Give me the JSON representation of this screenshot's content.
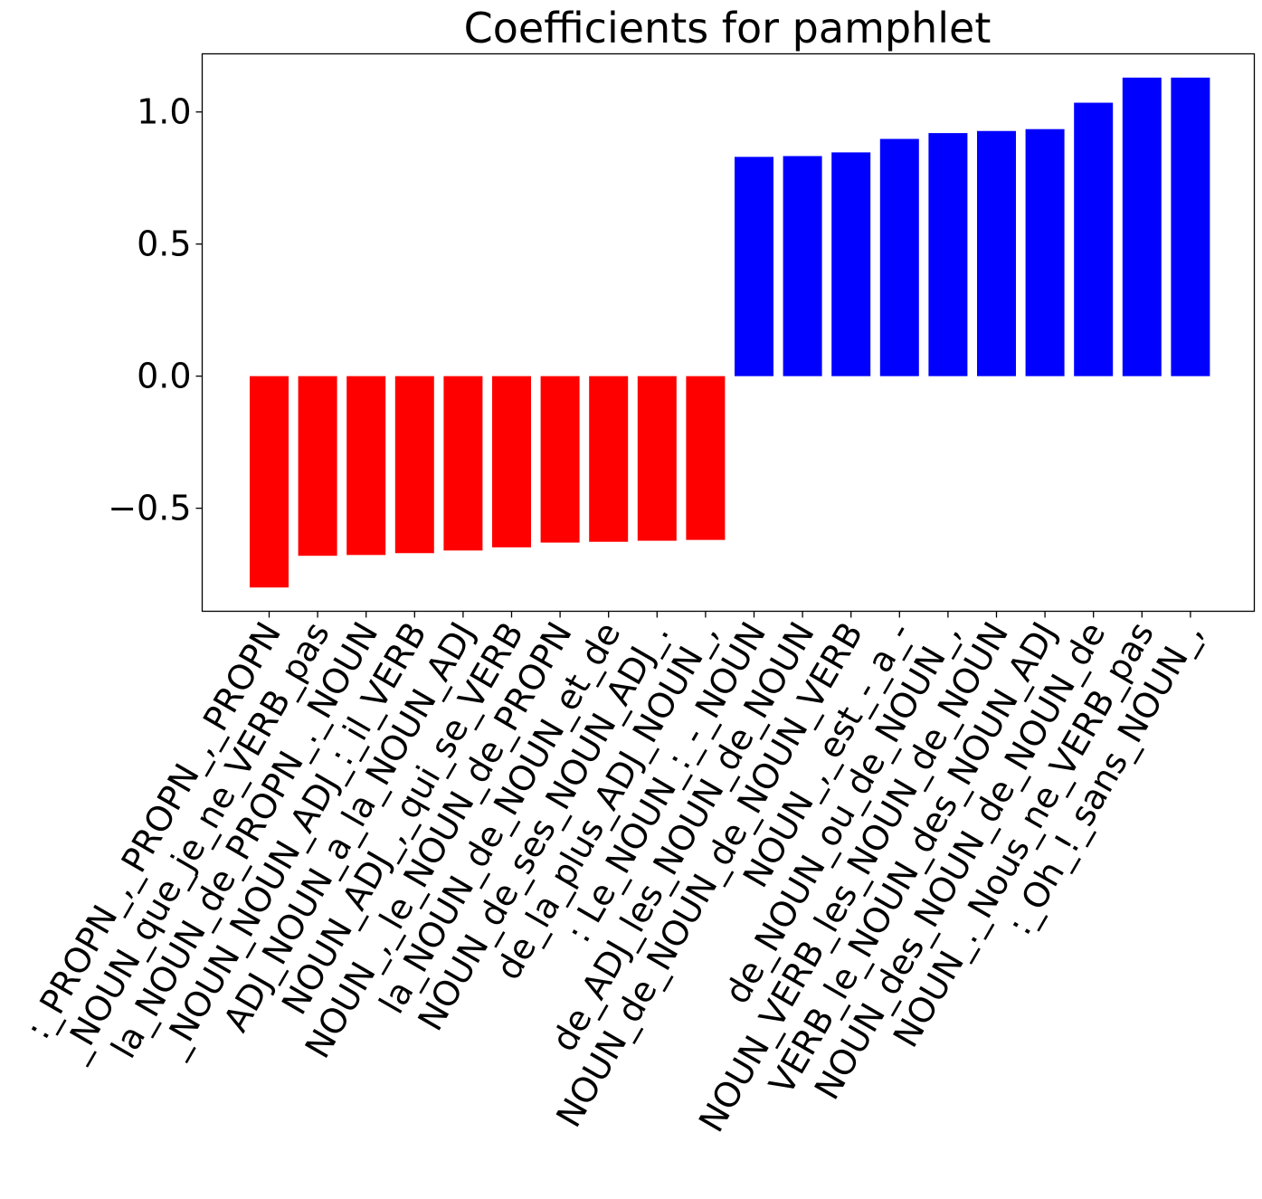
{
  "chart_data": {
    "type": "bar",
    "title": "Coefficients for pamphlet",
    "xlabel": "",
    "ylabel": "",
    "ylim": [
      -0.89,
      1.22
    ],
    "yticks": [
      -0.5,
      0.0,
      0.5,
      1.0
    ],
    "ytick_labels": [
      "−0.5",
      "0.0",
      "0.5",
      "1.0"
    ],
    "grid": false,
    "categories": [
      ":_PROPN_,_PROPN_,_PROPN",
      "_NOUN_que_je_ne_VERB_pas",
      "la_NOUN_de_PROPN_._NOUN",
      "_NOUN_NOUN_ADJ_:_il_VERB",
      "ADJ_NOUN_a_la_NOUN_ADJ",
      "NOUN_ADJ_,_qui_se_VERB",
      "NOUN_,_le_NOUN_de_PROPN",
      "la_NOUN_de_NOUN_et_de",
      "NOUN_de_ses_NOUN_ADJ_.",
      "de_la_plus_ADJ_NOUN_,",
      ": Le_NOUN_:_-_NOUN",
      "de_ADJ_les_NOUN_de_NOUN",
      "NOUN_de_NOUN_de_NOUN_VERB",
      "NOUN_,_est_-_a_-",
      "de_NOUN_ou_de_NOUN_,",
      "NOUN_VERB_les_NOUN_de_NOUN",
      "VERB_le_NOUN_des_NOUN_ADJ",
      "NOUN_des_NOUN_de_NOUN_de",
      "NOUN_._Nous_ne_VERB_pas",
      ":_Oh_!_sans_NOUN_,"
    ],
    "values": [
      -0.8,
      -0.68,
      -0.677,
      -0.67,
      -0.66,
      -0.648,
      -0.63,
      -0.627,
      -0.623,
      -0.62,
      0.83,
      0.833,
      0.847,
      0.898,
      0.92,
      0.928,
      0.935,
      1.035,
      1.13,
      1.13
    ],
    "colors": {
      "negative": "#ff0000",
      "positive": "#0000ff"
    }
  }
}
